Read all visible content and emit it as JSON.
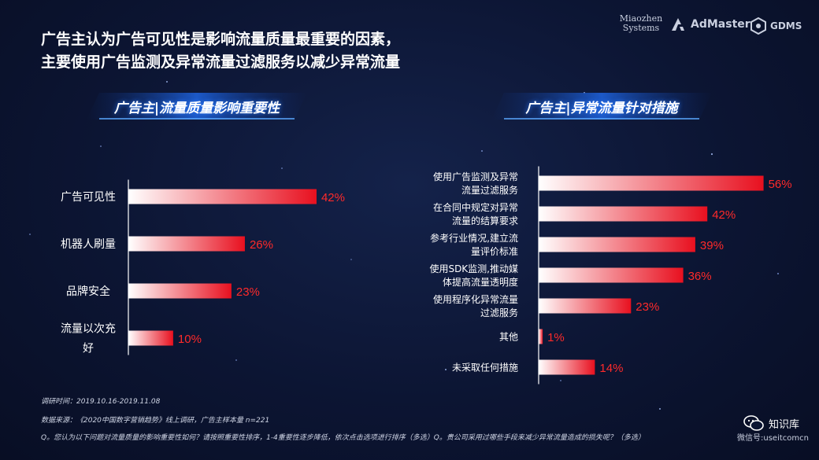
{
  "title_line1": "广告主认为广告可见性是影响流量质量最重要的因素，",
  "title_line2": "主要使用广告监测及异常流量过滤服务以减少异常流量",
  "logos": {
    "miaozhen_line1": "Miaozhen",
    "miaozhen_line2": "Systems",
    "admaster": "AdMaster",
    "gdms": "GDMS"
  },
  "chart_data": [
    {
      "type": "bar",
      "orientation": "horizontal",
      "title": "广告主|流量质量影响重要性",
      "categories": [
        [
          "广告可见性"
        ],
        [
          "机器人刷量"
        ],
        [
          "品牌安全"
        ],
        [
          "流量以次充",
          "好"
        ]
      ],
      "values": [
        42,
        26,
        23,
        10
      ],
      "value_labels": [
        "42%",
        "26%",
        "23%",
        "10%"
      ],
      "xlim": [
        0,
        100
      ]
    },
    {
      "type": "bar",
      "orientation": "horizontal",
      "title": "广告主|异常流量针对措施",
      "categories": [
        [
          "使用广告监测及异常",
          "流量过滤服务"
        ],
        [
          "在合同中规定对异常",
          "流量的结算要求"
        ],
        [
          "参考行业情况,建立流",
          "量评价标准"
        ],
        [
          "使用SDK监测,推动媒",
          "体提高流量透明度"
        ],
        [
          "使用程序化异常流量",
          "过滤服务"
        ],
        [
          "其他"
        ],
        [
          "未采取任何措施"
        ]
      ],
      "values": [
        56,
        42,
        39,
        36,
        23,
        1,
        14
      ],
      "value_labels": [
        "56%",
        "42%",
        "39%",
        "36%",
        "23%",
        "1%",
        "14%"
      ],
      "xlim": [
        0,
        100
      ]
    }
  ],
  "footer": {
    "survey_time": "调研时间：2019.10.16-2019.11.08",
    "source": "数据来源：《2020中国数字营销趋势》线上调研，广告主样本量 n=221",
    "question": "Q。您认为以下问题对流量质量的影响重要性如何？请按照重要性排序，1-4重要性逐步降低，依次点击选项进行排序（多选）Q。贵公司采用过哪些手段来减少异常流量造成的损失呢？（多选）"
  },
  "watermark": {
    "name": "知识库",
    "sub": "微信号:useitcomcn"
  },
  "colors": {
    "bar_start": "#ffffff",
    "bar_end": "#e8101f",
    "value_label": "#ff2a2a"
  }
}
